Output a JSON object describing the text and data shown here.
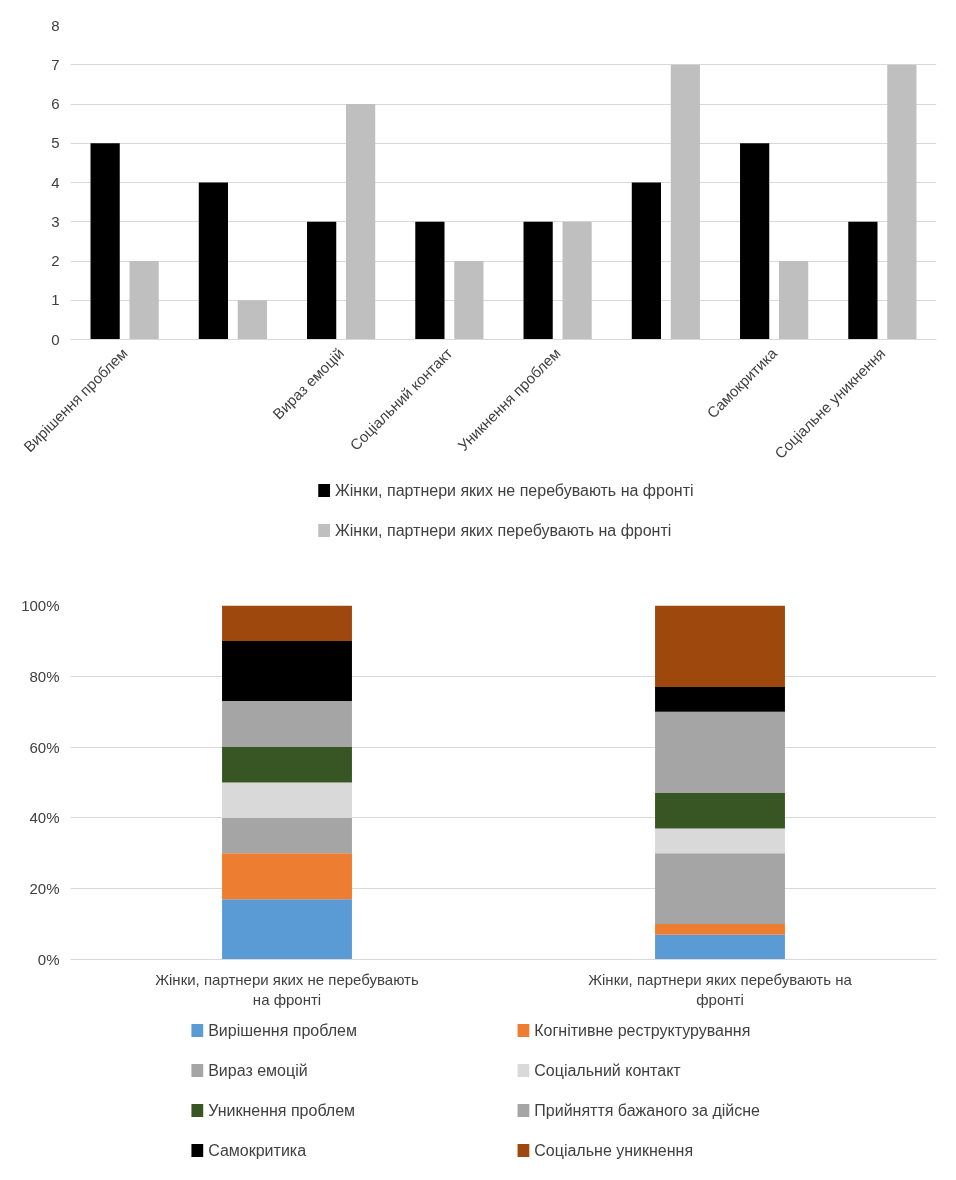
{
  "chart_data": [
    {
      "type": "bar",
      "categories": [
        "Вирішення проблем",
        null,
        "Вираз емоцій",
        "Соціальний контакт",
        "Уникнення проблем",
        null,
        "Самокритика",
        "Соціальне уникнення"
      ],
      "series": [
        {
          "name": "Жінки, партнери яких не перебувають на фронті",
          "color": "#000000",
          "values": [
            5,
            4,
            3,
            3,
            3,
            4,
            5,
            3
          ]
        },
        {
          "name": "Жінки, партнери яких перебувають на фронті",
          "color": "#bfbfbf",
          "values": [
            2,
            1,
            6,
            2,
            3,
            7,
            2,
            7
          ]
        }
      ],
      "ylim": [
        0,
        8
      ],
      "yticks": [
        0,
        1,
        2,
        3,
        4,
        5,
        6,
        7,
        8
      ],
      "grid": "y",
      "legend": "bottom"
    },
    {
      "type": "bar",
      "stacked": true,
      "categories": [
        "Жінки, партнери яких не перебувають на фронті",
        "Жінки, партнери яких перебувають на фронті"
      ],
      "series": [
        {
          "name": "Вирішення проблем",
          "color": "#5b9bd5",
          "values": [
            17,
            7
          ]
        },
        {
          "name": "Когнітивне реструктурування",
          "color": "#ed7d31",
          "values": [
            13,
            3
          ]
        },
        {
          "name": "Вираз емоцій",
          "color": "#a5a5a5",
          "values": [
            10,
            20
          ]
        },
        {
          "name": "Соціальний контакт",
          "color": "#d9d9d9",
          "values": [
            10,
            7
          ]
        },
        {
          "name": "Уникнення проблем",
          "color": "#375623",
          "values": [
            10,
            10
          ]
        },
        {
          "name": "Прийняття бажаного за дійсне",
          "color": "#a5a5a5",
          "values": [
            13,
            23
          ]
        },
        {
          "name": "Самокритика",
          "color": "#000000",
          "values": [
            17,
            7
          ]
        },
        {
          "name": "Соціальне уникнення",
          "color": "#9e480e",
          "values": [
            10,
            23
          ]
        }
      ],
      "ylim": [
        0,
        100
      ],
      "yticks": [
        {
          "value": 0,
          "label": "0%"
        },
        {
          "value": 20,
          "label": "20%"
        },
        {
          "value": 40,
          "label": "40%"
        },
        {
          "value": 60,
          "label": "60%"
        },
        {
          "value": 80,
          "label": "80%"
        },
        {
          "value": 100,
          "label": "100%"
        }
      ],
      "grid": "y",
      "legend": "bottom"
    }
  ]
}
